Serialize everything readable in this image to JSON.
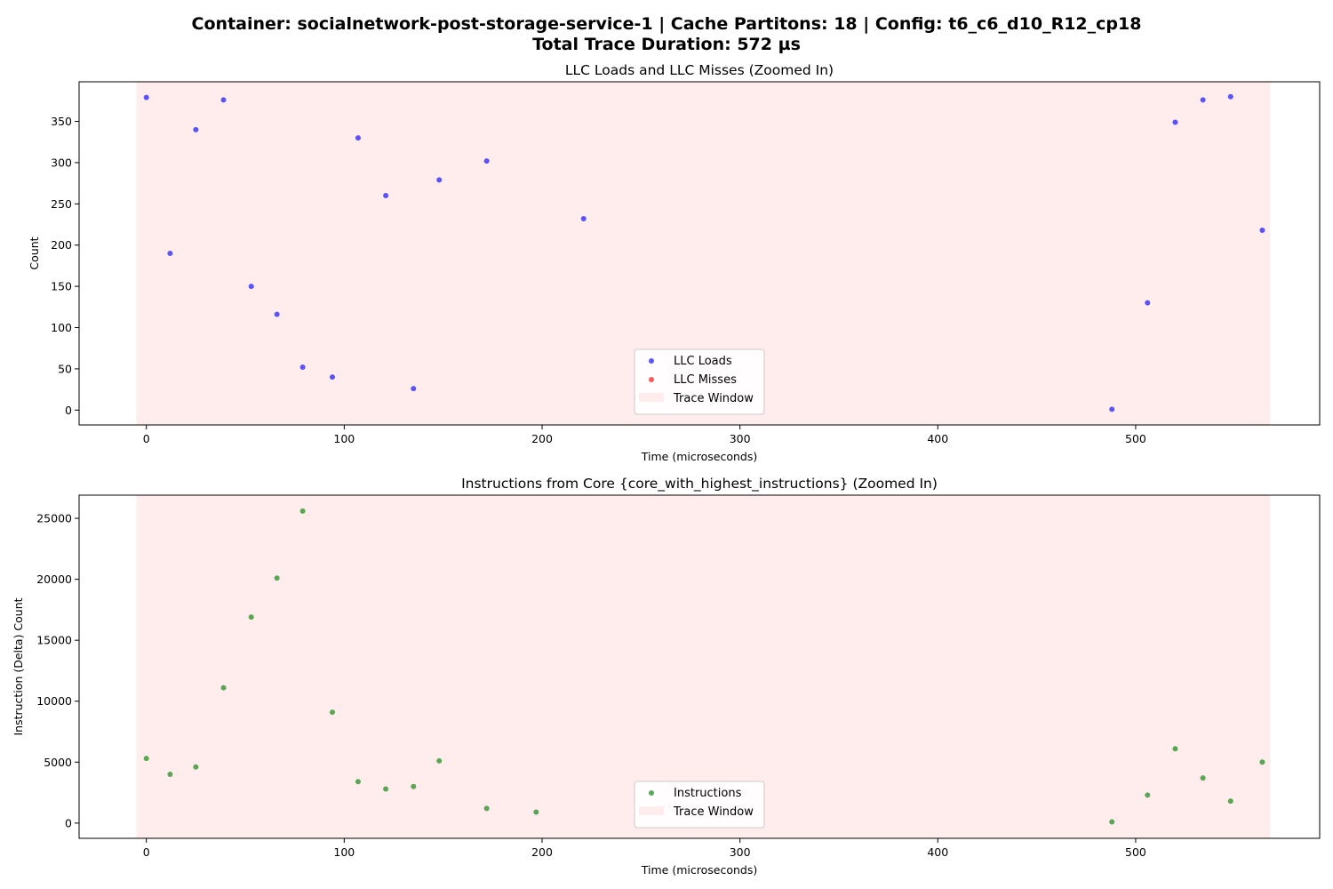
{
  "figure": {
    "suptitle_line1": "Container: socialnetwork-post-storage-service-1 | Cache Partitons: 18 | Config: t6_c6_d10_R12_cp18",
    "suptitle_line2": "Total Trace Duration: 572 µs"
  },
  "chart_data": [
    {
      "type": "scatter",
      "title": "LLC Loads and LLC Misses (Zoomed In)",
      "xlabel": "Time (microseconds)",
      "ylabel": "Count",
      "xlim": [
        -34,
        593
      ],
      "ylim": [
        -18,
        398
      ],
      "xticks": [
        0,
        100,
        200,
        300,
        400,
        500
      ],
      "yticks": [
        0,
        50,
        100,
        150,
        200,
        250,
        300,
        350
      ],
      "grid": false,
      "legend_position": "lower-center",
      "trace_window": [
        -5,
        568
      ],
      "legend": [
        {
          "label": "LLC Loads",
          "kind": "marker",
          "color": "#0000ff"
        },
        {
          "label": "LLC Misses",
          "kind": "marker",
          "color": "#ff0000"
        },
        {
          "label": "Trace Window",
          "kind": "patch",
          "color": "#ffcccc"
        }
      ],
      "series": [
        {
          "name": "LLC Loads",
          "color": "#0000ff",
          "x": [
            0,
            12,
            25,
            39,
            53,
            66,
            79,
            94,
            107,
            121,
            135,
            148,
            172,
            221,
            488,
            506,
            520,
            534,
            548,
            564
          ],
          "y": [
            379,
            190,
            340,
            376,
            150,
            116,
            52,
            40,
            330,
            260,
            26,
            279,
            302,
            232,
            1,
            130,
            349,
            376,
            380,
            218
          ]
        },
        {
          "name": "LLC Misses",
          "color": "#ff0000",
          "x": [],
          "y": []
        }
      ]
    },
    {
      "type": "scatter",
      "title": "Instructions from Core {core_with_highest_instructions} (Zoomed In)",
      "xlabel": "Time (microseconds)",
      "ylabel": "Instruction (Delta) Count",
      "xlim": [
        -34,
        593
      ],
      "ylim": [
        -1250,
        26900
      ],
      "xticks": [
        0,
        100,
        200,
        300,
        400,
        500
      ],
      "yticks": [
        0,
        5000,
        10000,
        15000,
        20000,
        25000
      ],
      "grid": false,
      "legend_position": "lower-center",
      "trace_window": [
        -5,
        568
      ],
      "legend": [
        {
          "label": "Instructions",
          "kind": "marker",
          "color": "#008000"
        },
        {
          "label": "Trace Window",
          "kind": "patch",
          "color": "#ffcccc"
        }
      ],
      "series": [
        {
          "name": "Instructions",
          "color": "#008000",
          "x": [
            0,
            12,
            25,
            39,
            53,
            66,
            79,
            94,
            107,
            121,
            135,
            148,
            172,
            197,
            488,
            506,
            520,
            534,
            548,
            564
          ],
          "y": [
            5300,
            4000,
            4600,
            11100,
            16900,
            20100,
            25600,
            9100,
            3400,
            2800,
            3000,
            5100,
            1200,
            900,
            100,
            2300,
            6100,
            3700,
            1800,
            5000
          ]
        }
      ]
    }
  ]
}
